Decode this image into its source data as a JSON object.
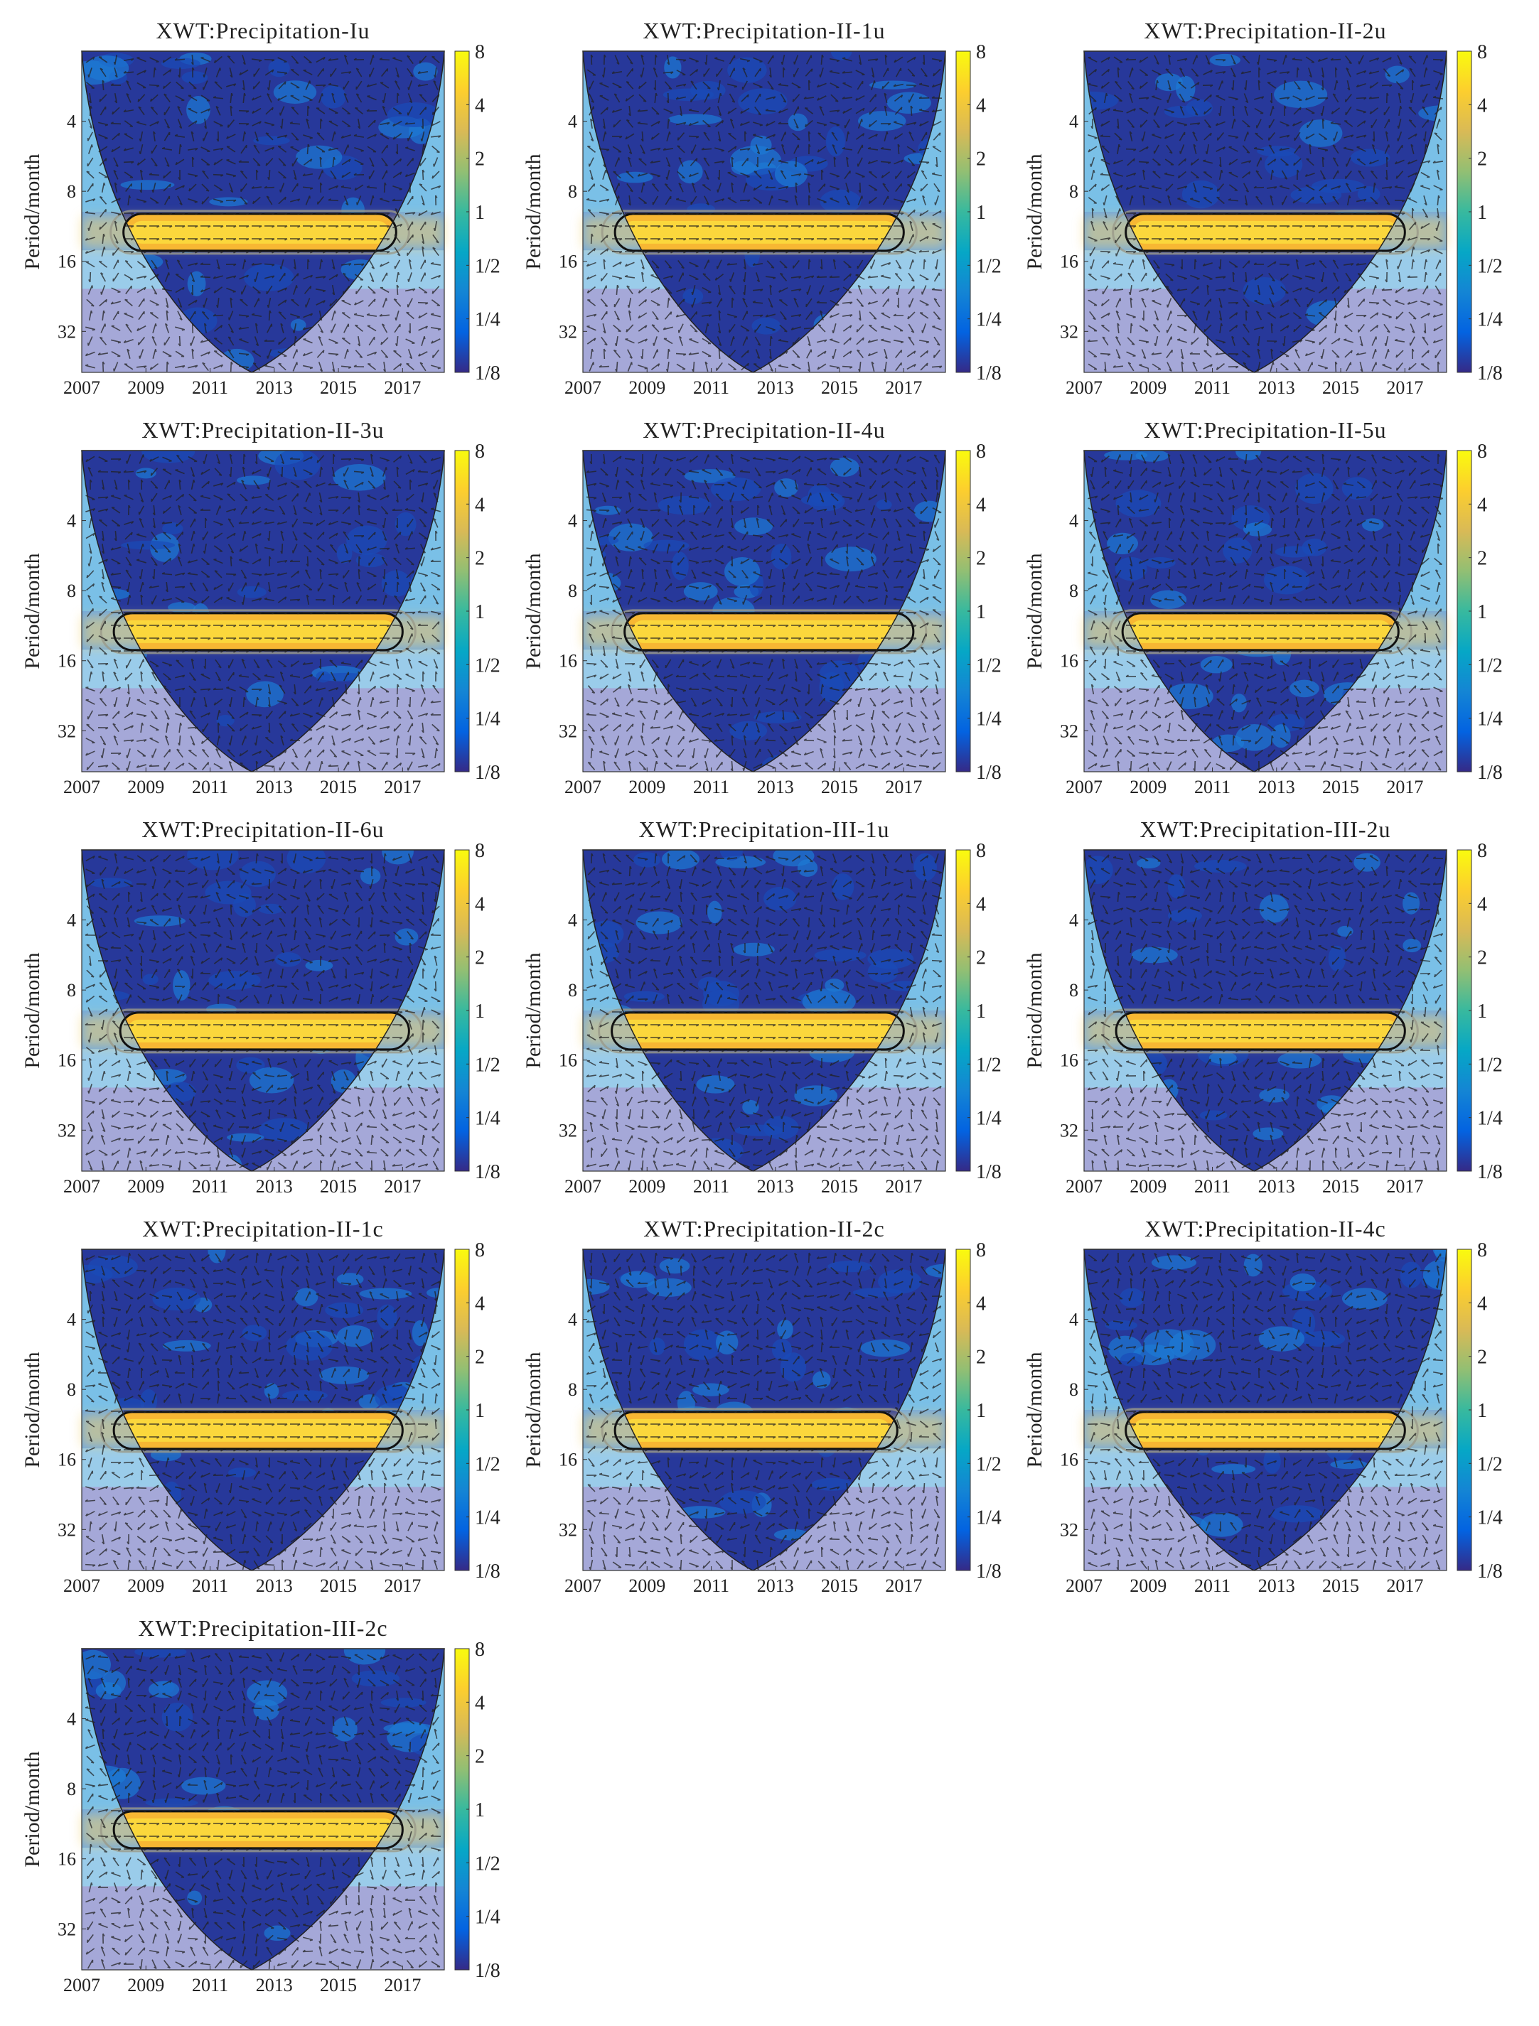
{
  "figure": {
    "description_colormap": [
      "#352a87",
      "#0363e1",
      "#1485d4",
      "#06a7c6",
      "#38b99e",
      "#92bf73",
      "#d9ba56",
      "#fcce2e",
      "#f9fb0e"
    ]
  },
  "chart_data": [
    {
      "type": "heatmap",
      "title": "XWT:Precipitation-Iu",
      "ylabel": "Period/month",
      "x_ticks": [
        "2007",
        "2009",
        "2011",
        "2013",
        "2015",
        "2017"
      ],
      "y_ticks": [
        "4",
        "8",
        "16",
        "32"
      ],
      "colorbar_ticks": [
        "8",
        "4",
        "2",
        "1",
        "1/2",
        "1/4",
        "1/8"
      ],
      "band_period_months": 12,
      "band_start_year": 2008.3,
      "band_end_year": 2016.8
    },
    {
      "type": "heatmap",
      "title": "XWT:Precipitation-II-1u",
      "ylabel": "Period/month",
      "x_ticks": [
        "2007",
        "2009",
        "2011",
        "2013",
        "2015",
        "2017"
      ],
      "y_ticks": [
        "4",
        "8",
        "16",
        "32"
      ],
      "colorbar_ticks": [
        "8",
        "4",
        "2",
        "1",
        "1/2",
        "1/4",
        "1/8"
      ],
      "band_period_months": 12,
      "band_start_year": 2008.0,
      "band_end_year": 2017.0
    },
    {
      "type": "heatmap",
      "title": "XWT:Precipitation-II-2u",
      "ylabel": "Period/month",
      "x_ticks": [
        "2007",
        "2009",
        "2011",
        "2013",
        "2015",
        "2017"
      ],
      "y_ticks": [
        "4",
        "8",
        "16",
        "32"
      ],
      "colorbar_ticks": [
        "8",
        "4",
        "2",
        "1",
        "1/2",
        "1/4",
        "1/8"
      ],
      "band_period_months": 12,
      "band_start_year": 2008.3,
      "band_end_year": 2017.0
    },
    {
      "type": "heatmap",
      "title": "XWT:Precipitation-II-3u",
      "ylabel": "Period/month",
      "x_ticks": [
        "2007",
        "2009",
        "2011",
        "2013",
        "2015",
        "2017"
      ],
      "y_ticks": [
        "4",
        "8",
        "16",
        "32"
      ],
      "colorbar_ticks": [
        "8",
        "4",
        "2",
        "1",
        "1/2",
        "1/4",
        "1/8"
      ],
      "band_period_months": 12,
      "band_start_year": 2008.0,
      "band_end_year": 2017.0
    },
    {
      "type": "heatmap",
      "title": "XWT:Precipitation-II-4u",
      "ylabel": "Period/month",
      "x_ticks": [
        "2007",
        "2009",
        "2011",
        "2013",
        "2015",
        "2017"
      ],
      "y_ticks": [
        "4",
        "8",
        "16",
        "32"
      ],
      "colorbar_ticks": [
        "8",
        "4",
        "2",
        "1",
        "1/2",
        "1/4",
        "1/8"
      ],
      "band_period_months": 12,
      "band_start_year": 2008.3,
      "band_end_year": 2017.3
    },
    {
      "type": "heatmap",
      "title": "XWT:Precipitation-II-5u",
      "ylabel": "Period/month",
      "x_ticks": [
        "2007",
        "2009",
        "2011",
        "2013",
        "2015",
        "2017"
      ],
      "y_ticks": [
        "4",
        "8",
        "16",
        "32"
      ],
      "colorbar_ticks": [
        "8",
        "4",
        "2",
        "1",
        "1/2",
        "1/4",
        "1/8"
      ],
      "band_period_months": 12,
      "band_start_year": 2008.2,
      "band_end_year": 2016.8
    },
    {
      "type": "heatmap",
      "title": "XWT:Precipitation-II-6u",
      "ylabel": "Period/month",
      "x_ticks": [
        "2007",
        "2009",
        "2011",
        "2013",
        "2015",
        "2017"
      ],
      "y_ticks": [
        "4",
        "8",
        "16",
        "32"
      ],
      "colorbar_ticks": [
        "8",
        "4",
        "2",
        "1",
        "1/2",
        "1/4",
        "1/8"
      ],
      "band_period_months": 12,
      "band_start_year": 2008.2,
      "band_end_year": 2017.2
    },
    {
      "type": "heatmap",
      "title": "XWT:Precipitation-III-1u",
      "ylabel": "Period/month",
      "x_ticks": [
        "2007",
        "2009",
        "2011",
        "2013",
        "2015",
        "2017"
      ],
      "y_ticks": [
        "4",
        "8",
        "16",
        "32"
      ],
      "colorbar_ticks": [
        "8",
        "4",
        "2",
        "1",
        "1/2",
        "1/4",
        "1/8"
      ],
      "band_period_months": 12,
      "band_start_year": 2007.9,
      "band_end_year": 2017.0
    },
    {
      "type": "heatmap",
      "title": "XWT:Precipitation-III-2u",
      "ylabel": "Period/month",
      "x_ticks": [
        "2007",
        "2009",
        "2011",
        "2013",
        "2015",
        "2017"
      ],
      "y_ticks": [
        "4",
        "8",
        "16",
        "32"
      ],
      "colorbar_ticks": [
        "8",
        "4",
        "2",
        "1",
        "1/2",
        "1/4",
        "1/8"
      ],
      "band_period_months": 12,
      "band_start_year": 2008.0,
      "band_end_year": 2017.0
    },
    {
      "type": "heatmap",
      "title": "XWT:Precipitation-II-1c",
      "ylabel": "Period/month",
      "x_ticks": [
        "2007",
        "2009",
        "2011",
        "2013",
        "2015",
        "2017"
      ],
      "y_ticks": [
        "4",
        "8",
        "16",
        "32"
      ],
      "colorbar_ticks": [
        "8",
        "4",
        "2",
        "1",
        "1/2",
        "1/4",
        "1/8"
      ],
      "band_period_months": 12,
      "band_start_year": 2008.0,
      "band_end_year": 2017.0
    },
    {
      "type": "heatmap",
      "title": "XWT:Precipitation-II-2c",
      "ylabel": "Period/month",
      "x_ticks": [
        "2007",
        "2009",
        "2011",
        "2013",
        "2015",
        "2017"
      ],
      "y_ticks": [
        "4",
        "8",
        "16",
        "32"
      ],
      "colorbar_ticks": [
        "8",
        "4",
        "2",
        "1",
        "1/2",
        "1/4",
        "1/8"
      ],
      "band_period_months": 12,
      "band_start_year": 2008.0,
      "band_end_year": 2016.8
    },
    {
      "type": "heatmap",
      "title": "XWT:Precipitation-II-4c",
      "ylabel": "Period/month",
      "x_ticks": [
        "2007",
        "2009",
        "2011",
        "2013",
        "2015",
        "2017"
      ],
      "y_ticks": [
        "4",
        "8",
        "16",
        "32"
      ],
      "colorbar_ticks": [
        "8",
        "4",
        "2",
        "1",
        "1/2",
        "1/4",
        "1/8"
      ],
      "band_period_months": 12,
      "band_start_year": 2008.3,
      "band_end_year": 2017.0
    },
    {
      "type": "heatmap",
      "title": "XWT:Precipitation-III-2c",
      "ylabel": "Period/month",
      "x_ticks": [
        "2007",
        "2009",
        "2011",
        "2013",
        "2015",
        "2017"
      ],
      "y_ticks": [
        "4",
        "8",
        "16",
        "32"
      ],
      "colorbar_ticks": [
        "8",
        "4",
        "2",
        "1",
        "1/2",
        "1/4",
        "1/8"
      ],
      "band_period_months": 12,
      "band_start_year": 2008.0,
      "band_end_year": 2017.0
    }
  ]
}
